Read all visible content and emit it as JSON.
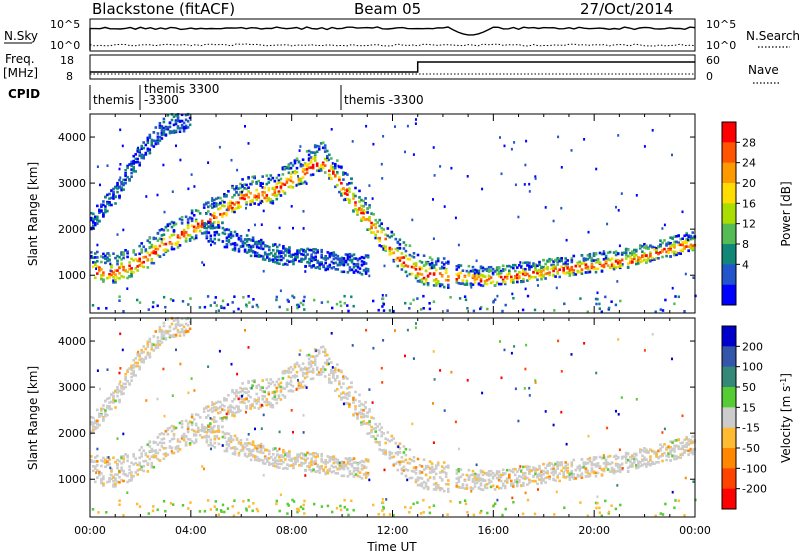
{
  "header": {
    "station": "Blackstone (fitACF)",
    "beam": "Beam 05",
    "date": "27/Oct/2014"
  },
  "noise_panel": {
    "left_label": "N.Sky",
    "left_ticks": [
      "10^5",
      "10^0"
    ],
    "right_label": "N.Search",
    "right_ticks": [
      "10^5",
      "10^0"
    ]
  },
  "freq_panel": {
    "left_label_line1": "Freq.",
    "left_label_line2": "[MHz]",
    "left_ticks": [
      "18",
      "8"
    ],
    "right_label": "Nave",
    "right_ticks": [
      "60",
      "0"
    ],
    "freq_step_hour": 13.0
  },
  "cpid": {
    "label": "CPID",
    "entries": [
      {
        "line1": "themis",
        "line2": "",
        "start_hour": 0.0
      },
      {
        "line1": "themis 3300",
        "line2": "-3300",
        "start_hour": 1.6
      },
      {
        "line1": "themis -3300",
        "line2": "",
        "start_hour": 10.0
      }
    ]
  },
  "chart_data": [
    {
      "type": "heatmap",
      "parameter": "Power",
      "xlabel": "",
      "ylabel": "Slant Range [km]",
      "xlim": [
        0,
        24
      ],
      "ylim": [
        180,
        4500
      ],
      "y_ticks": [
        1000,
        2000,
        3000,
        4000
      ],
      "colorbar": {
        "label": "Power [dB]",
        "ticks": [
          "28",
          "24",
          "20",
          "16",
          "12",
          "8",
          "4"
        ],
        "colors": [
          "#ff0000",
          "#ff5500",
          "#ff9900",
          "#ffdd00",
          "#aadd00",
          "#55bb55",
          "#118877",
          "#2255cc",
          "#0000ff"
        ]
      },
      "echo_bands": [
        {
          "start_hour": 0.0,
          "end_hour": 14.2,
          "range_km": [
            1100,
            1050,
            1300,
            1700,
            2000,
            2300,
            2700,
            2750,
            3100,
            3500,
            2800,
            2050,
            1400,
            1000,
            950
          ]
        },
        {
          "start_hour": 0.0,
          "end_hour": 4.0,
          "range_km": [
            2100,
            2700,
            3600,
            4200,
            4300
          ]
        },
        {
          "start_hour": 4.5,
          "end_hour": 11.0,
          "range_km": [
            1900,
            1700,
            1500,
            1350,
            1300,
            1200,
            1150
          ]
        },
        {
          "start_hour": 14.5,
          "end_hour": 24.0,
          "range_km": [
            950,
            900,
            1000,
            1100,
            1200,
            1300,
            1500,
            1700
          ]
        }
      ]
    },
    {
      "type": "heatmap",
      "parameter": "Velocity",
      "xlabel": "Time UT",
      "ylabel": "Slant Range [km]",
      "xlim": [
        0,
        24
      ],
      "ylim": [
        180,
        4500
      ],
      "x_ticks": [
        "00:00",
        "04:00",
        "08:00",
        "12:00",
        "16:00",
        "20:00",
        "00:00"
      ],
      "y_ticks": [
        1000,
        2000,
        3000,
        4000
      ],
      "colorbar": {
        "label": "Velocity [m s",
        "label_sup": "-1",
        "label_end": "]",
        "ticks": [
          "200",
          "100",
          "50",
          "15",
          "-15",
          "-50",
          "-100",
          "-200"
        ],
        "colors": [
          "#0000cc",
          "#3355aa",
          "#338877",
          "#55cc33",
          "#cccccc",
          "#ffbb33",
          "#ff8800",
          "#ff4400",
          "#ff0000"
        ]
      }
    }
  ]
}
